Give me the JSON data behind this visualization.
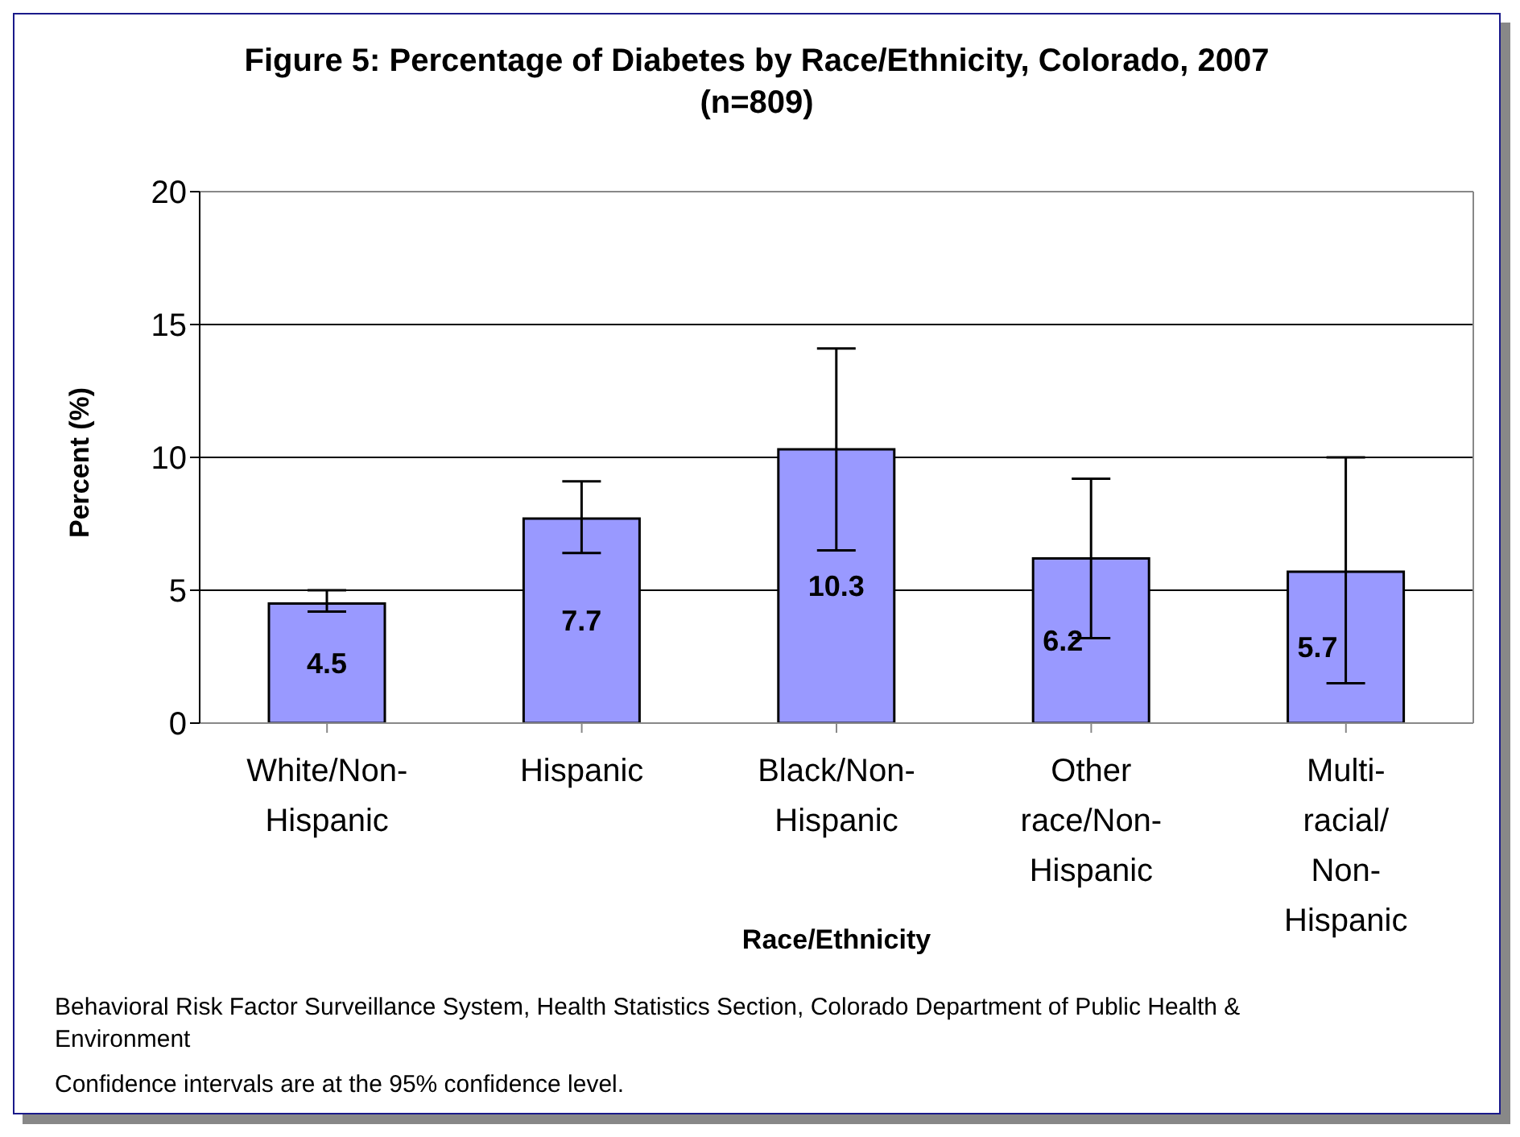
{
  "chart_data": {
    "type": "bar",
    "title": "Figure 5: Percentage of Diabetes by Race/Ethnicity, Colorado, 2007 (n=809)",
    "xlabel": "Race/Ethnicity",
    "ylabel": "Percent (%)",
    "categories": [
      "White/Non-Hispanic",
      "Hispanic",
      "Black/Non-Hispanic",
      "Other race/Non-Hispanic",
      "Multi-racial/Non-Hispanic"
    ],
    "values": [
      4.5,
      7.7,
      10.3,
      6.2,
      5.7
    ],
    "errors": [
      [
        4.2,
        5.0
      ],
      [
        6.4,
        9.1
      ],
      [
        6.5,
        14.1
      ],
      [
        3.2,
        9.2
      ],
      [
        1.5,
        10.0
      ]
    ],
    "color": "#9999ff",
    "ylim": [
      0,
      20
    ],
    "yticks": [
      0,
      5,
      10,
      15,
      20
    ],
    "grid": "y",
    "data_labels": true,
    "annotations": [
      "Behavioral Risk Factor Surveillance System, Health Statistics Section, Colorado Department of Public Health & Environment",
      "Confidence intervals are at the 95% confidence level."
    ]
  }
}
